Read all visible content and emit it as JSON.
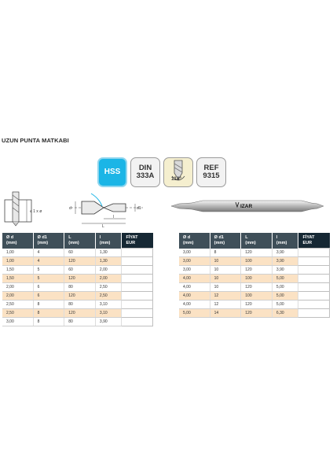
{
  "title": "UZUN PUNTA MATKABI",
  "badges": {
    "hss": "HSS",
    "din_line1": "DIN",
    "din_line2": "333A",
    "angle": "118°",
    "ref_line1": "REF",
    "ref_line2": "9315"
  },
  "drawing_labels": {
    "d": "d",
    "d1": "d1",
    "l": "l",
    "L": "L",
    "tol": "≤ 1 x ø",
    "brand": "IZAR"
  },
  "colors": {
    "header": "#3f4f59",
    "price_header": "#162834",
    "row_highlight": "#fbe2c4",
    "hss_badge": "#1bb5e6"
  },
  "table_left": {
    "headers": [
      "Ø d\n(mm)",
      "Ø d1\n(mm)",
      "L\n(mm)",
      "l\n(mm)",
      "FİYAT\nEUR"
    ],
    "rows": [
      [
        "1,00",
        "4",
        "60",
        "1,30"
      ],
      [
        "1,00",
        "4",
        "120",
        "1,30"
      ],
      [
        "1,50",
        "5",
        "60",
        "2,00"
      ],
      [
        "1,50",
        "5",
        "120",
        "2,00"
      ],
      [
        "2,00",
        "6",
        "80",
        "2,50"
      ],
      [
        "2,00",
        "6",
        "120",
        "2,50"
      ],
      [
        "2,50",
        "8",
        "80",
        "3,10"
      ],
      [
        "2,50",
        "8",
        "120",
        "3,10"
      ],
      [
        "3,00",
        "8",
        "80",
        "3,90"
      ]
    ]
  },
  "table_right": {
    "headers": [
      "Ø d\n(mm)",
      "Ø d1\n(mm)",
      "L\n(mm)",
      "l\n(mm)",
      "FİYAT\nEUR"
    ],
    "rows": [
      [
        "3,00",
        "8",
        "120",
        "3,90"
      ],
      [
        "3,00",
        "10",
        "100",
        "3,90"
      ],
      [
        "3,00",
        "10",
        "120",
        "3,90"
      ],
      [
        "4,00",
        "10",
        "100",
        "5,00"
      ],
      [
        "4,00",
        "10",
        "120",
        "5,00"
      ],
      [
        "4,00",
        "12",
        "100",
        "5,00"
      ],
      [
        "4,00",
        "12",
        "120",
        "5,00"
      ],
      [
        "5,00",
        "14",
        "120",
        "6,30"
      ]
    ]
  }
}
